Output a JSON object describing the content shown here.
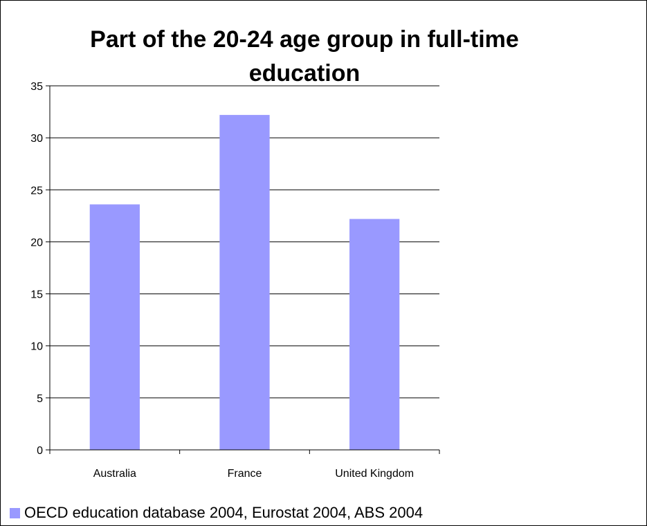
{
  "chart_data": {
    "type": "bar",
    "title_lines": [
      "Part of the 20-24 age group in full-time",
      "education"
    ],
    "categories": [
      "Australia",
      "France",
      "United Kingdom"
    ],
    "series": [
      {
        "name": "OECD education database 2004, Eurostat 2004, ABS 2004",
        "values": [
          23.6,
          32.2,
          22.2
        ],
        "color": "#9999ff"
      }
    ],
    "ylim": [
      0,
      35
    ],
    "yticks": [
      "0",
      "5",
      "10",
      "15",
      "20",
      "25",
      "30",
      "35"
    ],
    "grid": true,
    "legend_position": "bottom-left"
  }
}
